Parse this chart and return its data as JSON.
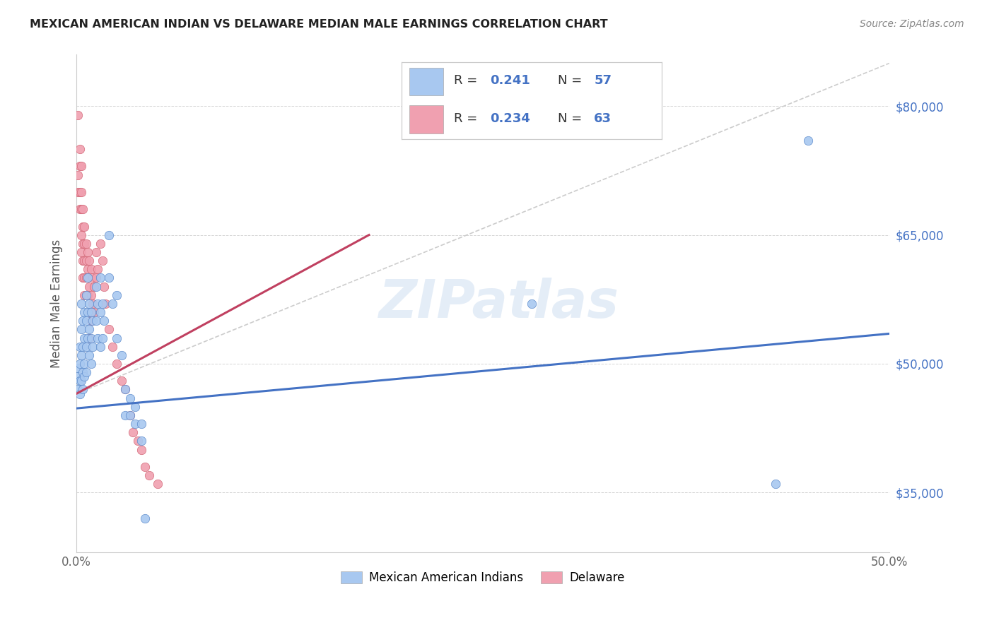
{
  "title": "MEXICAN AMERICAN INDIAN VS DELAWARE MEDIAN MALE EARNINGS CORRELATION CHART",
  "source": "Source: ZipAtlas.com",
  "ylabel": "Median Male Earnings",
  "xlim": [
    0.0,
    0.5
  ],
  "ylim": [
    28000,
    86000
  ],
  "yticks": [
    35000,
    50000,
    65000,
    80000
  ],
  "ytick_labels": [
    "$35,000",
    "$50,000",
    "$65,000",
    "$80,000"
  ],
  "xticks": [
    0.0,
    0.1,
    0.2,
    0.3,
    0.4,
    0.5
  ],
  "xtick_labels": [
    "0.0%",
    "",
    "",
    "",
    "",
    "50.0%"
  ],
  "blue_color": "#a8c8f0",
  "pink_color": "#f0a0b0",
  "blue_edge_color": "#5585c8",
  "pink_edge_color": "#d06070",
  "blue_line_color": "#4472c4",
  "pink_line_color": "#c04060",
  "right_tick_color": "#4472c4",
  "watermark": "ZIPatlas",
  "legend_label_blue": "Mexican American Indians",
  "legend_label_pink": "Delaware",
  "blue_scatter": [
    [
      0.001,
      48500
    ],
    [
      0.001,
      47000
    ],
    [
      0.001,
      49500
    ],
    [
      0.002,
      50000
    ],
    [
      0.002,
      48000
    ],
    [
      0.002,
      46500
    ],
    [
      0.002,
      52000
    ],
    [
      0.003,
      57000
    ],
    [
      0.003,
      54000
    ],
    [
      0.003,
      51000
    ],
    [
      0.003,
      48000
    ],
    [
      0.004,
      55000
    ],
    [
      0.004,
      52000
    ],
    [
      0.004,
      49000
    ],
    [
      0.004,
      47000
    ],
    [
      0.005,
      56000
    ],
    [
      0.005,
      53000
    ],
    [
      0.005,
      50000
    ],
    [
      0.005,
      48500
    ],
    [
      0.006,
      58000
    ],
    [
      0.006,
      55000
    ],
    [
      0.006,
      52000
    ],
    [
      0.006,
      49000
    ],
    [
      0.007,
      60000
    ],
    [
      0.007,
      56000
    ],
    [
      0.007,
      53000
    ],
    [
      0.008,
      57000
    ],
    [
      0.008,
      54000
    ],
    [
      0.008,
      51000
    ],
    [
      0.009,
      56000
    ],
    [
      0.009,
      53000
    ],
    [
      0.009,
      50000
    ],
    [
      0.01,
      55000
    ],
    [
      0.01,
      52000
    ],
    [
      0.012,
      59000
    ],
    [
      0.012,
      55000
    ],
    [
      0.013,
      57000
    ],
    [
      0.013,
      53000
    ],
    [
      0.015,
      60000
    ],
    [
      0.015,
      56000
    ],
    [
      0.015,
      52000
    ],
    [
      0.016,
      57000
    ],
    [
      0.016,
      53000
    ],
    [
      0.017,
      55000
    ],
    [
      0.02,
      65000
    ],
    [
      0.02,
      60000
    ],
    [
      0.022,
      57000
    ],
    [
      0.025,
      58000
    ],
    [
      0.025,
      53000
    ],
    [
      0.028,
      51000
    ],
    [
      0.03,
      47000
    ],
    [
      0.03,
      44000
    ],
    [
      0.033,
      46000
    ],
    [
      0.033,
      44000
    ],
    [
      0.036,
      45000
    ],
    [
      0.036,
      43000
    ],
    [
      0.04,
      43000
    ],
    [
      0.04,
      41000
    ],
    [
      0.042,
      32000
    ],
    [
      0.28,
      57000
    ],
    [
      0.43,
      36000
    ],
    [
      0.45,
      76000
    ]
  ],
  "pink_scatter": [
    [
      0.001,
      79000
    ],
    [
      0.001,
      72000
    ],
    [
      0.001,
      70000
    ],
    [
      0.002,
      75000
    ],
    [
      0.002,
      73000
    ],
    [
      0.002,
      70000
    ],
    [
      0.002,
      68000
    ],
    [
      0.003,
      73000
    ],
    [
      0.003,
      70000
    ],
    [
      0.003,
      68000
    ],
    [
      0.003,
      65000
    ],
    [
      0.003,
      63000
    ],
    [
      0.004,
      68000
    ],
    [
      0.004,
      66000
    ],
    [
      0.004,
      64000
    ],
    [
      0.004,
      62000
    ],
    [
      0.004,
      60000
    ],
    [
      0.005,
      66000
    ],
    [
      0.005,
      64000
    ],
    [
      0.005,
      62000
    ],
    [
      0.005,
      60000
    ],
    [
      0.005,
      58000
    ],
    [
      0.006,
      64000
    ],
    [
      0.006,
      62000
    ],
    [
      0.006,
      60000
    ],
    [
      0.006,
      58000
    ],
    [
      0.007,
      63000
    ],
    [
      0.007,
      61000
    ],
    [
      0.007,
      58000
    ],
    [
      0.008,
      62000
    ],
    [
      0.008,
      59000
    ],
    [
      0.008,
      56000
    ],
    [
      0.008,
      53000
    ],
    [
      0.009,
      61000
    ],
    [
      0.009,
      58000
    ],
    [
      0.009,
      55000
    ],
    [
      0.01,
      60000
    ],
    [
      0.01,
      57000
    ],
    [
      0.011,
      59000
    ],
    [
      0.011,
      56000
    ],
    [
      0.012,
      63000
    ],
    [
      0.012,
      60000
    ],
    [
      0.013,
      61000
    ],
    [
      0.015,
      64000
    ],
    [
      0.016,
      62000
    ],
    [
      0.017,
      59000
    ],
    [
      0.018,
      57000
    ],
    [
      0.02,
      54000
    ],
    [
      0.022,
      52000
    ],
    [
      0.025,
      50000
    ],
    [
      0.028,
      48000
    ],
    [
      0.03,
      47000
    ],
    [
      0.033,
      44000
    ],
    [
      0.035,
      42000
    ],
    [
      0.038,
      41000
    ],
    [
      0.04,
      40000
    ],
    [
      0.042,
      38000
    ],
    [
      0.045,
      37000
    ],
    [
      0.05,
      36000
    ]
  ],
  "blue_trend_x": [
    0.0,
    0.5
  ],
  "blue_trend_y": [
    44800,
    53500
  ],
  "pink_trend_x": [
    0.0,
    0.18
  ],
  "pink_trend_y": [
    46500,
    65000
  ],
  "dash_trend_x": [
    0.0,
    0.5
  ],
  "dash_trend_y": [
    46500,
    85000
  ]
}
